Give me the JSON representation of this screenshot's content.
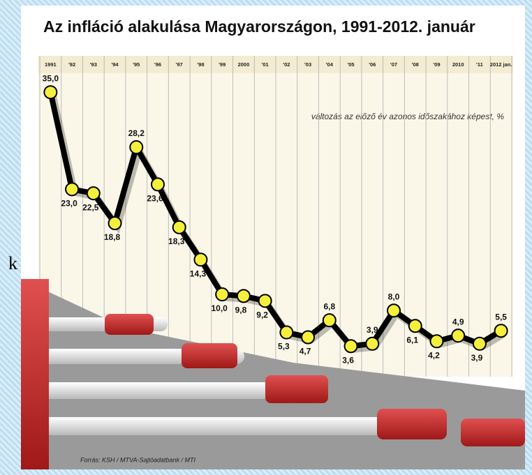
{
  "chart_data": {
    "type": "line",
    "title": "Az infláció alakulása Magyarországon, 1991-2012. január",
    "subtitle": "változás az előző év azonos időszakához képest, %",
    "source": "Forrás: KSH / MTVA-Sajtóadatbank / MTI",
    "categories": [
      "1991",
      "'92",
      "'93",
      "'94",
      "'95",
      "'96",
      "'97",
      "'98",
      "'99",
      "2000",
      "'01",
      "'02",
      "'03",
      "'04",
      "'05",
      "'06",
      "'07",
      "'08",
      "'09",
      "2010",
      "'11",
      "2012 jan."
    ],
    "values": [
      35.0,
      23.0,
      22.5,
      18.8,
      28.2,
      23.6,
      18.3,
      14.3,
      10.0,
      9.8,
      9.2,
      5.3,
      4.7,
      6.8,
      3.6,
      3.9,
      8.0,
      6.1,
      4.2,
      4.9,
      3.9,
      5.5
    ],
    "value_labels": [
      "35,0",
      "23,0",
      "22,5",
      "18,8",
      "28,2",
      "23,6",
      "18,3",
      "14,3",
      "10,0",
      "9,8",
      "9,2",
      "5,3",
      "4,7",
      "6,8",
      "3,6",
      "3,9",
      "8,0",
      "6,1",
      "4,2",
      "4,9",
      "3,9",
      "5,5"
    ],
    "color": "#000000",
    "marker_color": "#f4ef3c",
    "ylim": [
      0,
      37
    ]
  },
  "side_fragment": "k"
}
